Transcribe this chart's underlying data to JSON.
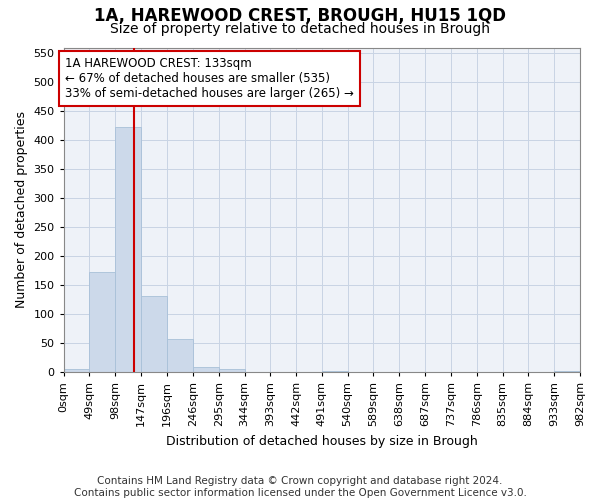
{
  "title": "1A, HAREWOOD CREST, BROUGH, HU15 1QD",
  "subtitle": "Size of property relative to detached houses in Brough",
  "xlabel": "Distribution of detached houses by size in Brough",
  "ylabel": "Number of detached properties",
  "bar_color": "#ccd9ea",
  "bar_edgecolor": "#a8c0d8",
  "grid_color": "#c8d4e4",
  "bg_color": "#eef2f8",
  "vline_x": 133,
  "vline_color": "#cc0000",
  "annotation_line1": "1A HAREWOOD CREST: 133sqm",
  "annotation_line2": "← 67% of detached houses are smaller (535)",
  "annotation_line3": "33% of semi-detached houses are larger (265) →",
  "annotation_box_color": "#ffffff",
  "annotation_box_edgecolor": "#cc0000",
  "bins": [
    0,
    49,
    98,
    147,
    196,
    246,
    295,
    344,
    393,
    442,
    491,
    540,
    589,
    638,
    687,
    737,
    786,
    835,
    884,
    933,
    982
  ],
  "bin_labels": [
    "0sqm",
    "49sqm",
    "98sqm",
    "147sqm",
    "196sqm",
    "246sqm",
    "295sqm",
    "344sqm",
    "393sqm",
    "442sqm",
    "491sqm",
    "540sqm",
    "589sqm",
    "638sqm",
    "687sqm",
    "737sqm",
    "786sqm",
    "835sqm",
    "884sqm",
    "933sqm",
    "982sqm"
  ],
  "bar_heights": [
    5,
    172,
    422,
    132,
    57,
    8,
    5,
    0,
    0,
    0,
    2,
    0,
    0,
    0,
    0,
    0,
    0,
    0,
    0,
    2
  ],
  "ylim": [
    0,
    560
  ],
  "yticks": [
    0,
    50,
    100,
    150,
    200,
    250,
    300,
    350,
    400,
    450,
    500,
    550
  ],
  "footer": "Contains HM Land Registry data © Crown copyright and database right 2024.\nContains public sector information licensed under the Open Government Licence v3.0.",
  "title_fontsize": 12,
  "subtitle_fontsize": 10,
  "label_fontsize": 9,
  "tick_fontsize": 8,
  "annotation_fontsize": 8.5,
  "footer_fontsize": 7.5
}
